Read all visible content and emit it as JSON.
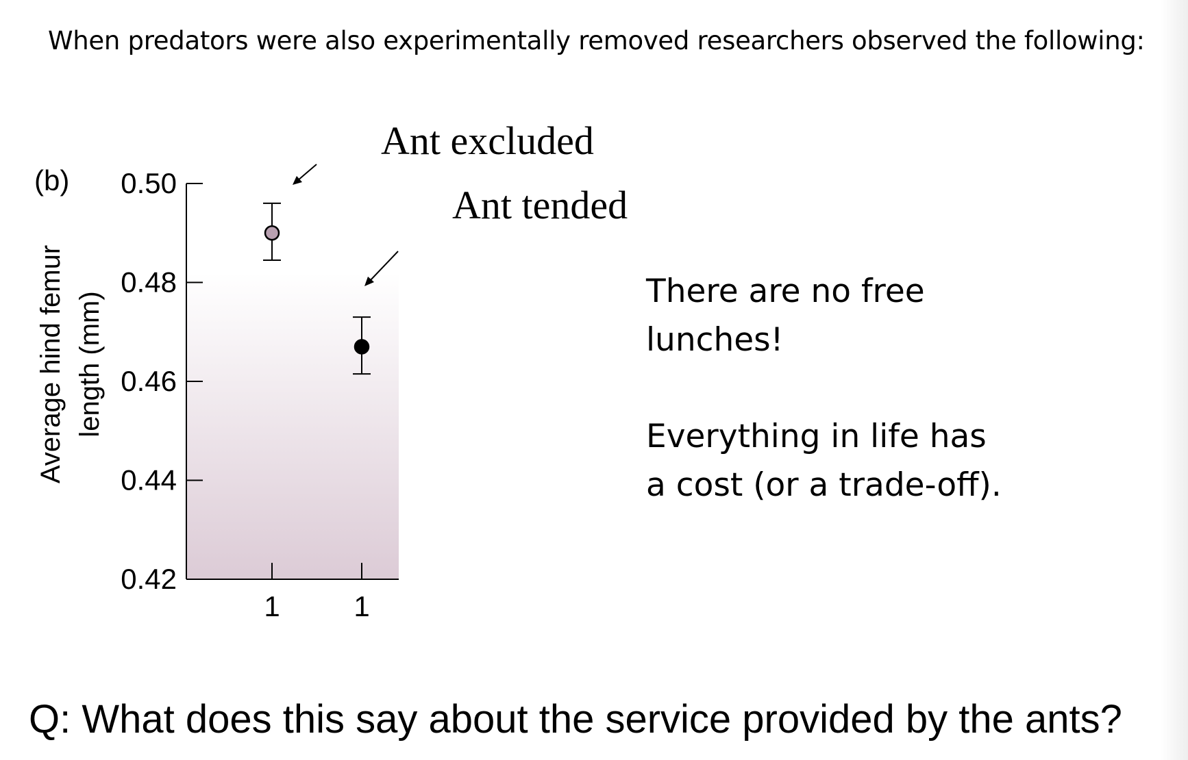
{
  "heading": "When predators were also experimentally removed researchers observed the following:",
  "labels": {
    "ant_excluded": "Ant excluded",
    "ant_tended": "Ant tended"
  },
  "notes": {
    "note1": "There are no free lunches!",
    "note2": "Everything in life has a cost (or a trade-off)."
  },
  "question": "Q: What does this say about the service provided by the ants?",
  "colors": {
    "plot_gradient_top": "#ffffff",
    "plot_gradient_bottom": "#dccbd6",
    "excluded_marker": "#b8a0b0",
    "tended_marker": "#000000"
  },
  "chart_data": {
    "type": "scatter",
    "panel_label": "(b)",
    "ylabel_line1": "Average hind femur",
    "ylabel_line2": "length (mm)",
    "xlabel": "",
    "ylim": [
      0.42,
      0.5
    ],
    "yticks": [
      "0.50",
      "0.48",
      "0.46",
      "0.44",
      "0.42"
    ],
    "yvalues": [
      0.5,
      0.48,
      0.46,
      0.44,
      0.42
    ],
    "categories": [
      "1",
      "1"
    ],
    "points": [
      {
        "category_index": 0,
        "y": 0.49,
        "err_low": 0.4845,
        "err_high": 0.496,
        "style": "open"
      },
      {
        "category_index": 1,
        "y": 0.467,
        "err_low": 0.4615,
        "err_high": 0.473,
        "style": "filled"
      }
    ],
    "grid": false
  }
}
